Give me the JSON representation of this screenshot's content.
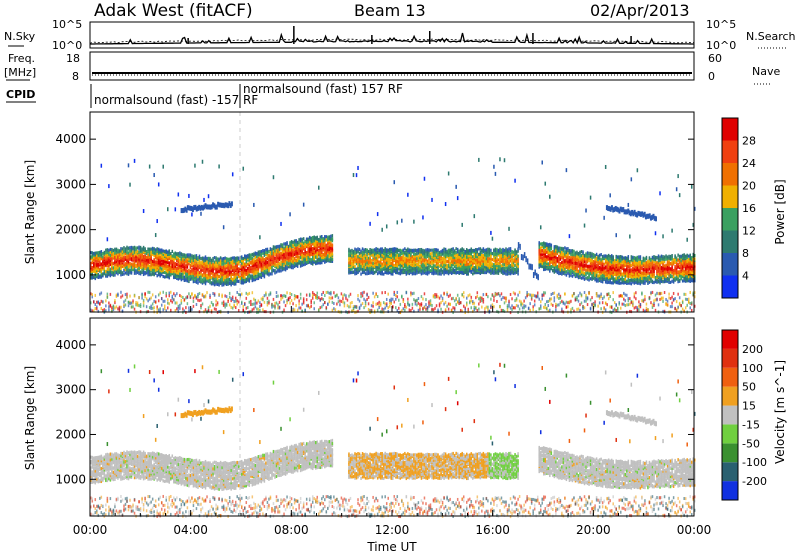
{
  "header": {
    "station": "Adak West (fitACF)",
    "beam": "Beam 13",
    "date": "02/Apr/2013"
  },
  "noise_panel": {
    "left_label": "N.Sky",
    "right_label": "N.Search",
    "left_ticks": [
      "10^5",
      "10^0"
    ],
    "right_ticks": [
      "10^5",
      "10^0"
    ]
  },
  "freq_panel": {
    "left_label_line1": "Freq.",
    "left_label_line2": "[MHz]",
    "left_ticks": [
      "18",
      "8"
    ],
    "right_label": "Nave",
    "right_ticks": [
      "60",
      "0"
    ]
  },
  "cpid_panel": {
    "label": "CPID",
    "mode1": "normalsound (fast) -157 RF",
    "mode2": "normalsound (fast) 157 RF"
  },
  "x_axis": {
    "label": "Time UT",
    "ticks": [
      "00:00",
      "04:00",
      "08:00",
      "12:00",
      "16:00",
      "20:00",
      "00:00"
    ]
  },
  "chart_data": [
    {
      "type": "heatmap",
      "title": "Power",
      "ylabel": "Slant Range [km]",
      "xlabel": "Time UT",
      "yticks": [
        "1000",
        "2000",
        "3000",
        "4000"
      ],
      "ylim": [
        180,
        4600
      ],
      "xlim": [
        0,
        24
      ],
      "colorbar": {
        "label": "Power [dB]",
        "ticks": [
          "4",
          "8",
          "12",
          "16",
          "20",
          "24",
          "28"
        ],
        "colors": [
          "#1030f0",
          "#2a5ab0",
          "#2e7a70",
          "#3aa060",
          "#f0b000",
          "#f07000",
          "#f04010",
          "#e00000"
        ]
      },
      "regions": [
        {
          "name": "main-echo-band-early",
          "t_start": 0,
          "t_end": 9.6,
          "range_center_km": 1250,
          "band_km": 500,
          "peak_color": "#e04010"
        },
        {
          "name": "high-range-patch",
          "t_start": 3.6,
          "t_end": 5.6,
          "range_center_km": 2500,
          "band_km": 250
        },
        {
          "name": "midday-band",
          "t_start": 10.2,
          "t_end": 17.0,
          "range_center_km": 1350,
          "band_km": 550
        },
        {
          "name": "main-echo-band-late",
          "t_start": 17.8,
          "t_end": 24,
          "range_center_km": 1150,
          "band_km": 500,
          "peak_color": "#e04010"
        },
        {
          "name": "evening-high-patch",
          "t_start": 20.5,
          "t_end": 22.5,
          "range_center_km": 2550,
          "band_km": 250
        }
      ]
    },
    {
      "type": "heatmap",
      "title": "Velocity",
      "ylabel": "Slant Range [km]",
      "xlabel": "Time UT",
      "yticks": [
        "1000",
        "2000",
        "3000",
        "4000"
      ],
      "ylim": [
        180,
        4600
      ],
      "xlim": [
        0,
        24
      ],
      "colorbar": {
        "label": "Velocity [m s^-1]",
        "ticks": [
          "200",
          "100",
          "50",
          "15",
          "-15",
          "-50",
          "-100",
          "-200"
        ],
        "colors": [
          "#1030e0",
          "#2a6070",
          "#3a9030",
          "#70d040",
          "#c0c0c0",
          "#f0a020",
          "#f06010",
          "#e03010",
          "#e00000"
        ]
      }
    }
  ],
  "colors": {
    "noise_line": "#000000",
    "separator": "#000000"
  }
}
